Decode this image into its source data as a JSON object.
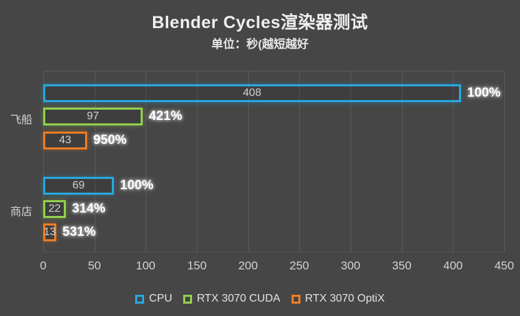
{
  "chart": {
    "title": "Blender Cycles渲染器测试",
    "subtitle": "单位：秒(越短越好",
    "colors": {
      "background": "#464646",
      "gridline": "#5a5a5a",
      "cpu": "#29a8e0",
      "cuda": "#93d04e",
      "optix": "#ee7d23"
    }
  },
  "chart_data": {
    "type": "bar",
    "orientation": "horizontal",
    "title": "Blender Cycles渲染器测试",
    "subtitle": "单位：秒(越短越好",
    "xlabel": "",
    "ylabel": "",
    "xlim": [
      0,
      450
    ],
    "x_ticks": [
      0,
      50,
      100,
      150,
      200,
      250,
      300,
      350,
      400,
      450
    ],
    "grid": "vertical",
    "legend_position": "bottom",
    "categories": [
      "飞船",
      "商店"
    ],
    "series": [
      {
        "name": "CPU",
        "color": "#29a8e0",
        "values": [
          408,
          69
        ],
        "pct_labels": [
          "100%",
          "100%"
        ]
      },
      {
        "name": "RTX 3070 CUDA",
        "color": "#93d04e",
        "values": [
          97,
          22
        ],
        "pct_labels": [
          "421%",
          "314%"
        ]
      },
      {
        "name": "RTX 3070 OptiX",
        "color": "#ee7d23",
        "values": [
          43,
          13
        ],
        "pct_labels": [
          "950%",
          "531%"
        ]
      }
    ]
  }
}
